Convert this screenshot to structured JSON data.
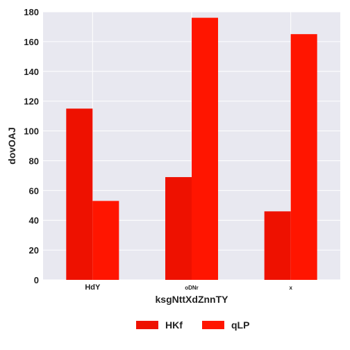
{
  "chart_data": {
    "type": "bar",
    "title": "",
    "xlabel": "ksgNttXdZnnTY",
    "ylabel": "dovOAJ",
    "categories": [
      "HdY",
      "oDNr",
      "x"
    ],
    "series": [
      {
        "name": "HKf",
        "values": [
          115,
          69,
          46
        ],
        "color": "#ee1100"
      },
      {
        "name": "qLP",
        "values": [
          53,
          176,
          165
        ],
        "color": "#ff1500"
      }
    ],
    "ylim": [
      0,
      180
    ],
    "yticks": [
      0,
      20,
      40,
      60,
      80,
      100,
      120,
      140,
      160,
      180
    ],
    "grid": true,
    "legend_position": "bottom-center",
    "plot_background": "#e8e8f0"
  }
}
